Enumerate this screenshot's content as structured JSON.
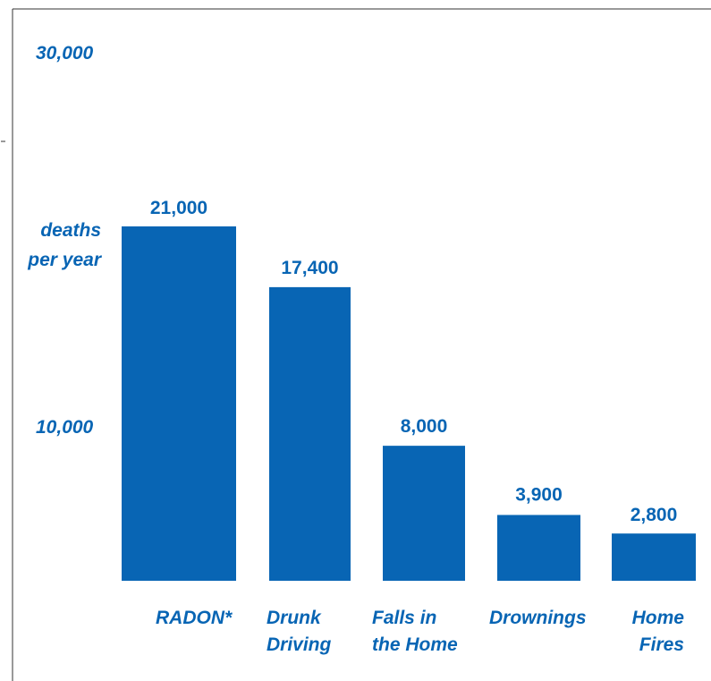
{
  "colors": {
    "bar": "#0865b4",
    "text": "#0865b4",
    "frame": "#333333"
  },
  "chart_data": {
    "type": "bar",
    "categories": [
      [
        "RADON*"
      ],
      [
        "Drunk",
        "Driving"
      ],
      [
        "Falls in",
        "the Home"
      ],
      [
        "Drownings"
      ],
      [
        "Home",
        "Fires"
      ]
    ],
    "values": [
      21000,
      17400,
      8000,
      3900,
      2800
    ],
    "value_labels": [
      "21,000",
      "17,400",
      "8,000",
      "3,900",
      "2,800"
    ],
    "y_ticks": [
      {
        "value": 30000,
        "label": "30,000"
      },
      {
        "value": 10000,
        "label": "10,000"
      }
    ],
    "ylabel": [
      "deaths",
      "per year"
    ],
    "title": "",
    "xlabel": "",
    "grid": false,
    "legend": "none"
  }
}
